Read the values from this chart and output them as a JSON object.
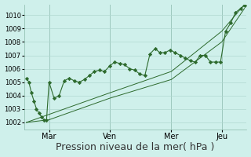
{
  "bg_color": "#cff0eb",
  "grid_color": "#b0d8d0",
  "line_color": "#2d6a2d",
  "marker_color": "#2d6a2d",
  "xlabel": "Pression niveau de la mer( hPa )",
  "xlabel_fontsize": 9,
  "ylim": [
    1001.5,
    1010.8
  ],
  "yticks": [
    1002,
    1003,
    1004,
    1005,
    1006,
    1007,
    1008,
    1009,
    1010
  ],
  "xtick_labels": [
    "Mar",
    "Ven",
    "Mer",
    "Jeu"
  ],
  "day_positions": [
    18,
    66,
    115,
    155
  ],
  "total_points": 173,
  "series1_x": [
    0,
    2,
    4,
    6,
    8,
    10,
    12,
    14,
    16,
    18,
    22,
    26,
    30,
    34,
    38,
    42,
    46,
    50,
    54,
    58,
    62,
    66,
    70,
    74,
    78,
    82,
    86,
    90,
    94,
    98,
    102,
    106,
    110,
    114,
    118,
    122,
    126,
    130,
    134,
    138,
    142,
    146,
    150,
    154,
    158,
    162,
    166,
    170,
    173
  ],
  "series1_y": [
    1005.3,
    1005.0,
    1004.2,
    1003.6,
    1003.0,
    1002.7,
    1002.4,
    1002.2,
    1002.2,
    1005.0,
    1003.8,
    1004.0,
    1005.1,
    1005.3,
    1005.1,
    1005.0,
    1005.2,
    1005.5,
    1005.8,
    1005.9,
    1005.8,
    1006.2,
    1006.5,
    1006.4,
    1006.3,
    1006.0,
    1005.9,
    1005.6,
    1005.5,
    1007.1,
    1007.5,
    1007.2,
    1007.2,
    1007.4,
    1007.2,
    1007.0,
    1006.8,
    1006.6,
    1006.5,
    1007.0,
    1007.0,
    1006.5,
    1006.5,
    1006.5,
    1008.8,
    1009.4,
    1010.2,
    1010.5,
    1010.7
  ],
  "series2_x": [
    0,
    18,
    66,
    115,
    155,
    173
  ],
  "series2_y": [
    1002.0,
    1002.2,
    1003.8,
    1005.2,
    1008.0,
    1010.5
  ],
  "series3_x": [
    0,
    18,
    66,
    115,
    155,
    173
  ],
  "series3_y": [
    1002.0,
    1002.6,
    1004.2,
    1005.8,
    1008.8,
    1010.8
  ]
}
